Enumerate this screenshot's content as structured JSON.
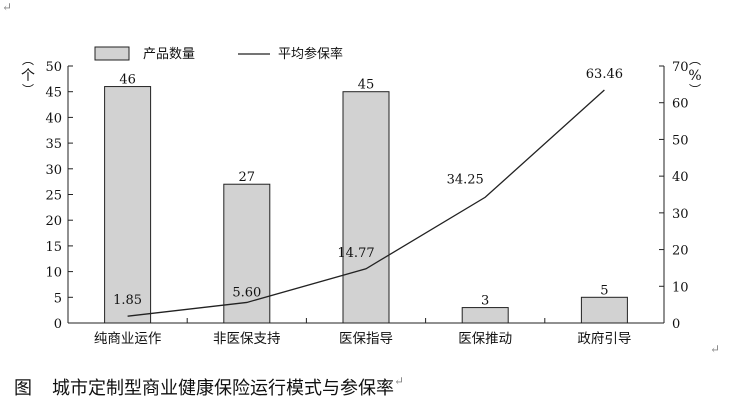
{
  "chart_data": {
    "type": "bar+line",
    "categories": [
      "纯商业运作",
      "非医保支持",
      "医保指导",
      "医保推动",
      "政府引导"
    ],
    "series": [
      {
        "name": "产品数量",
        "type": "bar",
        "axis": "left",
        "values": [
          46,
          27,
          45,
          3,
          5
        ],
        "labels": [
          "46",
          "27",
          "45",
          "3",
          "5"
        ]
      },
      {
        "name": "平均参保率",
        "type": "line",
        "axis": "right",
        "values": [
          1.85,
          5.6,
          14.77,
          34.25,
          63.46
        ],
        "labels": [
          "1.85",
          "5.60",
          "14.77",
          "34.25",
          "63.46"
        ]
      }
    ],
    "y_left": {
      "unit": "个",
      "ylim": [
        0,
        50
      ],
      "ticks": [
        "0",
        "5",
        "10",
        "15",
        "20",
        "25",
        "30",
        "35",
        "40",
        "45",
        "50"
      ]
    },
    "y_right": {
      "unit": "%",
      "ylim": [
        0,
        70
      ],
      "ticks": [
        "0",
        "10",
        "20",
        "30",
        "40",
        "50",
        "60",
        "70"
      ]
    },
    "legend_position": "top-left",
    "grid": false,
    "colors": {
      "bar_fill": "#d2d2d2",
      "bar_stroke": "#222222",
      "line": "#222222"
    }
  },
  "caption": {
    "prefix": "图",
    "text": "城市定制型商业健康保险运行模式与参保率"
  },
  "marks": {
    "return": "↵"
  }
}
